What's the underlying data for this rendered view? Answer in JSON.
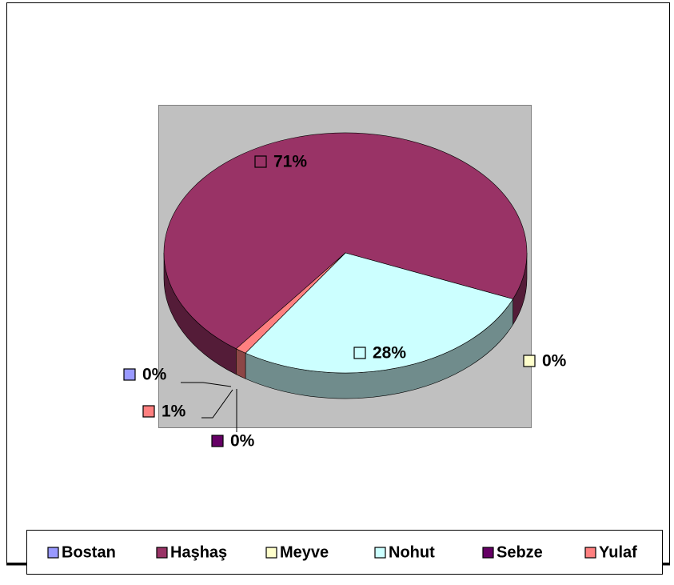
{
  "chart_data": {
    "type": "pie",
    "categories": [
      "Bostan",
      "Haşhaş",
      "Meyve",
      "Nohut",
      "Sebze",
      "Yulaf"
    ],
    "values": [
      0,
      71,
      0,
      28,
      0,
      1
    ],
    "value_labels": [
      "0%",
      "71%",
      "0%",
      "28%",
      "0%",
      "1%"
    ],
    "colors": [
      "#9999ff",
      "#993366",
      "#ffffcc",
      "#ccffff",
      "#660066",
      "#ff8080"
    ],
    "legend": "bottom"
  }
}
